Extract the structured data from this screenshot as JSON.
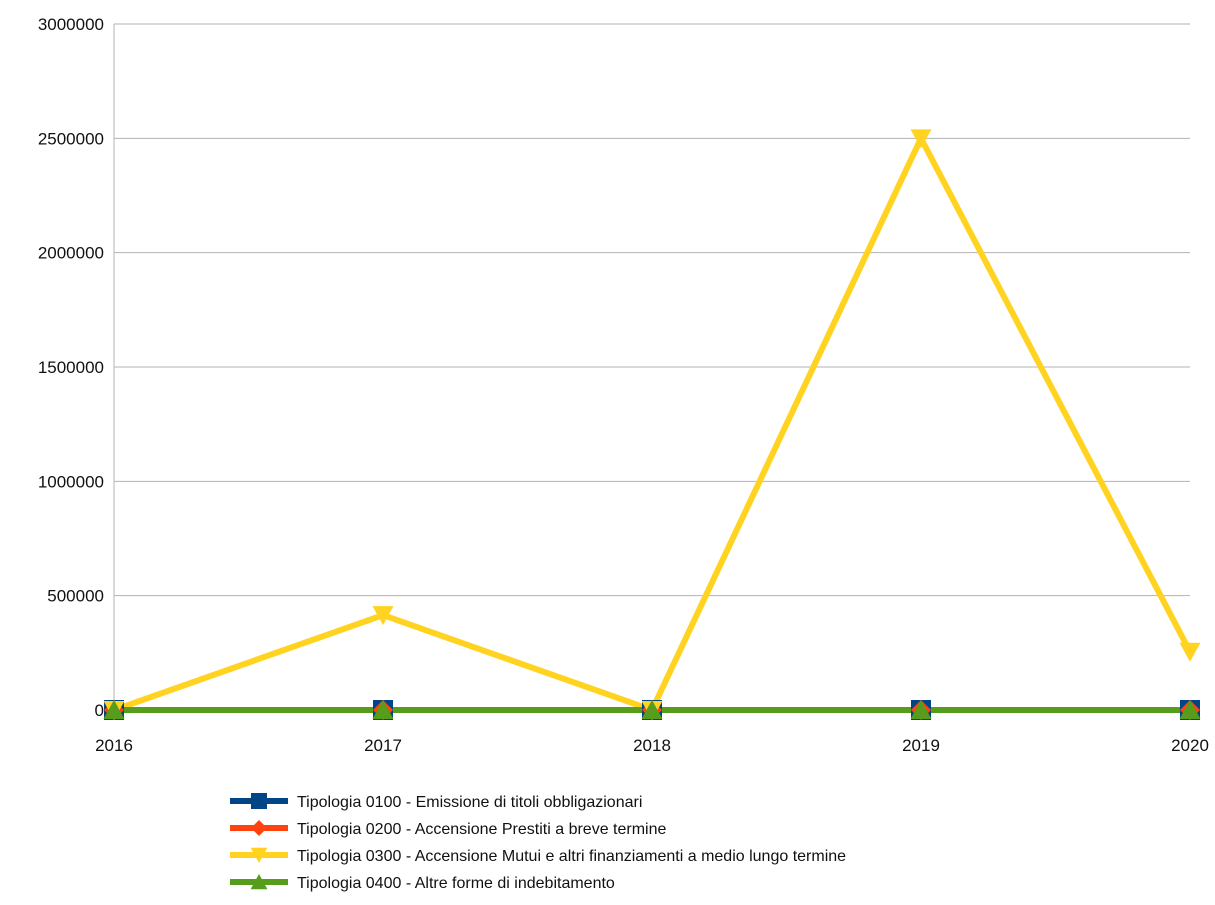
{
  "chart_data": {
    "type": "line",
    "title": "",
    "xlabel": "",
    "ylabel": "",
    "categories": [
      "2016",
      "2017",
      "2018",
      "2019",
      "2020"
    ],
    "ylim": [
      0,
      3000000
    ],
    "yticks": [
      0,
      500000,
      1000000,
      1500000,
      2000000,
      2500000,
      3000000
    ],
    "grid": true,
    "legend_position": "bottom",
    "series": [
      {
        "name": "Tipologia 0100 - Emissione di titoli obbligazionari",
        "color": "#004586",
        "marker": "square",
        "values": [
          0,
          0,
          0,
          0,
          0
        ]
      },
      {
        "name": "Tipologia 0200 - Accensione Prestiti a breve termine",
        "color": "#ff420e",
        "marker": "diamond",
        "values": [
          0,
          0,
          0,
          0,
          0
        ]
      },
      {
        "name": "Tipologia 0300 - Accensione Mutui e altri finanziamenti a medio lungo termine",
        "color": "#ffd320",
        "marker": "triangle-down",
        "values": [
          0,
          415000,
          0,
          2500000,
          255000
        ]
      },
      {
        "name": "Tipologia 0400 - Altre forme di indebitamento",
        "color": "#579d1c",
        "marker": "triangle-up",
        "values": [
          0,
          0,
          0,
          0,
          0
        ]
      }
    ]
  }
}
